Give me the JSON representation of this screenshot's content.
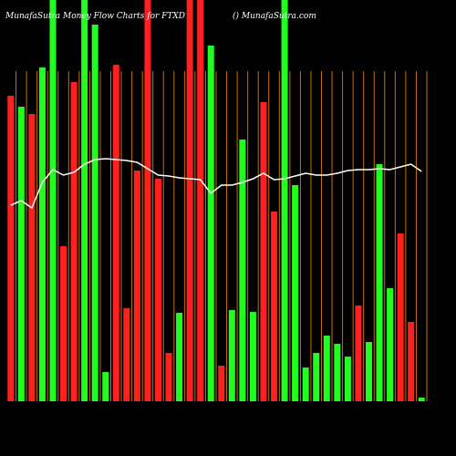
{
  "chart_data": {
    "type": "bar",
    "title": "MunafaSutra  Money Flow  Charts for FTXD",
    "subtitle": "() MunafaSutra.com",
    "categories": [
      null,
      null,
      null,
      null,
      null,
      null,
      null,
      null,
      null,
      null,
      null,
      null,
      null,
      null,
      null,
      null,
      null,
      null,
      null,
      null,
      null,
      null,
      null,
      null,
      null,
      null,
      null,
      null,
      null,
      null,
      null,
      null,
      null,
      null,
      null,
      null,
      null,
      null,
      null,
      null
    ],
    "values": [
      335,
      323,
      315,
      366,
      440,
      170,
      350,
      440,
      413,
      32,
      369,
      102,
      253,
      440,
      244,
      53,
      97,
      440,
      440,
      390,
      39,
      100,
      287,
      98,
      328,
      208,
      440,
      237,
      37,
      53,
      72,
      63,
      49,
      105,
      65,
      260,
      124,
      184,
      87,
      4
    ],
    "colors": [
      "#ff2020",
      "#20ff20",
      "#ff2020",
      "#20ff20",
      "#20ff20",
      "#ff2020",
      "#ff2020",
      "#20ff20",
      "#20ff20",
      "#20ff20",
      "#ff2020",
      "#ff2020",
      "#ff2020",
      "#ff2020",
      "#ff2020",
      "#ff2020",
      "#20ff20",
      "#ff2020",
      "#ff2020",
      "#20ff20",
      "#ff2020",
      "#20ff20",
      "#20ff20",
      "#20ff20",
      "#ff2020",
      "#ff2020",
      "#20ff20",
      "#20ff20",
      "#20ff20",
      "#20ff20",
      "#20ff20",
      "#20ff20",
      "#20ff20",
      "#ff2020",
      "#20ff20",
      "#20ff20",
      "#20ff20",
      "#ff2020",
      "#ff2020",
      "#20ff20"
    ],
    "line": {
      "color": "#ffffff",
      "values": [
        215,
        220,
        212,
        240,
        254,
        248,
        251,
        260,
        265,
        266,
        265,
        264,
        262,
        255,
        248,
        247,
        245,
        244,
        243,
        228,
        237,
        237,
        240,
        244,
        250,
        243,
        244,
        247,
        250,
        248,
        248,
        250,
        253,
        254,
        254,
        255,
        254,
        257,
        260,
        252
      ]
    },
    "ylim": [
      0,
      440
    ]
  }
}
